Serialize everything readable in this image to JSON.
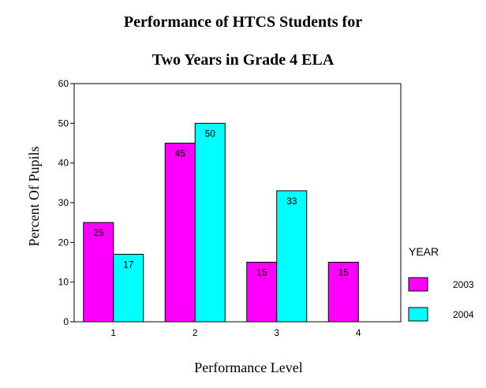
{
  "chart_data": {
    "type": "bar",
    "title_line1": "Performance of HTCS Students for",
    "title_line2": "Two Years in Grade 4 ELA",
    "xlabel": "Performance Level",
    "ylabel": "Percent Of Pupils",
    "categories": [
      "1",
      "2",
      "3",
      "4"
    ],
    "ylim": [
      0,
      60
    ],
    "yticks": [
      "0",
      "10",
      "20",
      "30",
      "40",
      "50",
      "60"
    ],
    "legend_title": "YEAR",
    "legend_position": "right",
    "grid": false,
    "series": [
      {
        "name": "2003",
        "color": "#ff00ff",
        "values": [
          25,
          45,
          15,
          15
        ]
      },
      {
        "name": "2004",
        "color": "#00ffff",
        "values": [
          17,
          50,
          33,
          null
        ]
      }
    ]
  }
}
